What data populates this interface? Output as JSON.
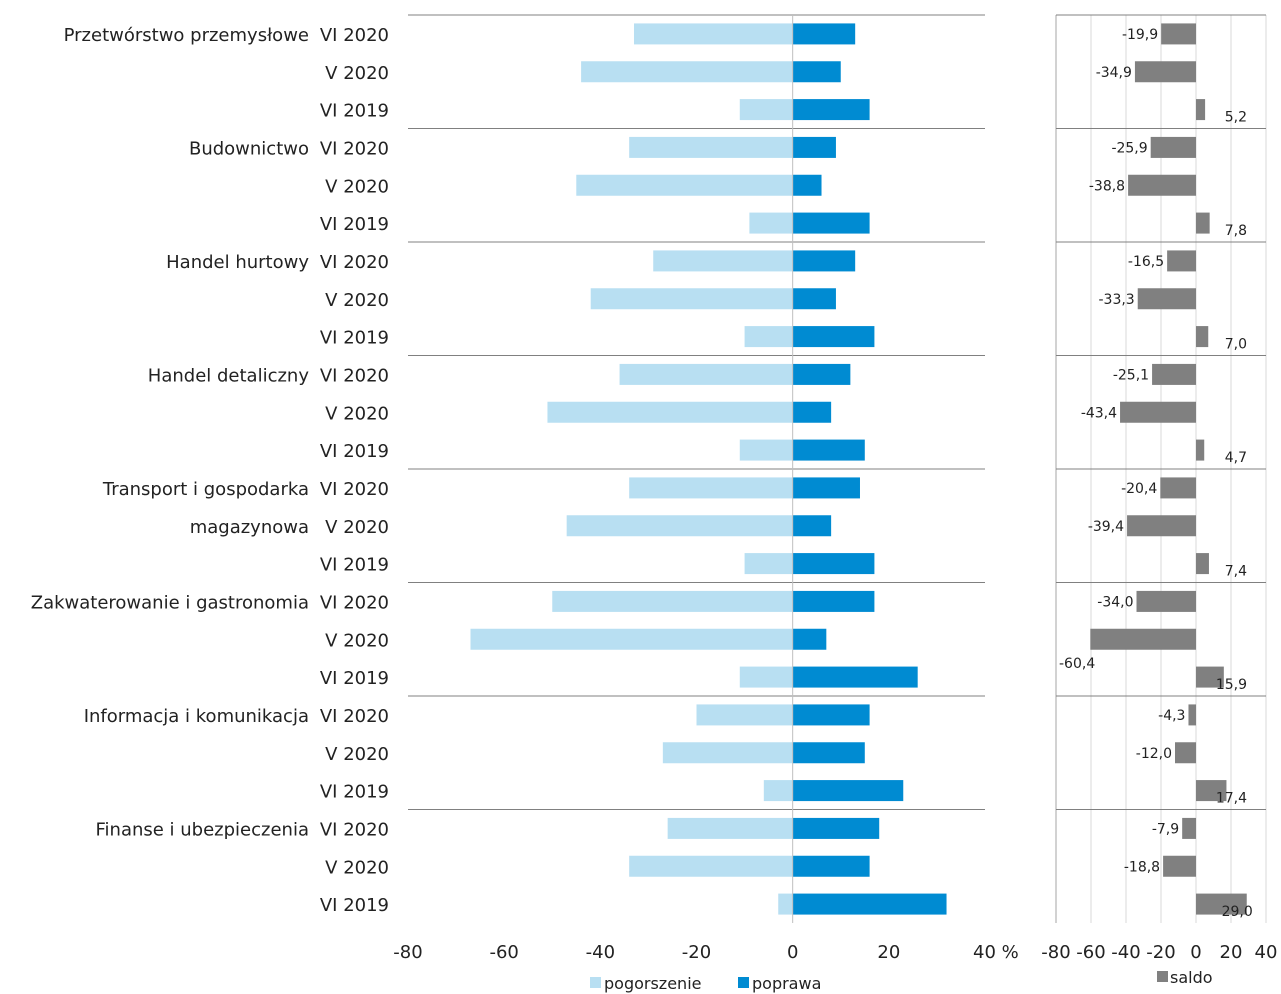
{
  "chart_data": [
    {
      "type": "bar",
      "orientation": "horizontal",
      "stacked": true,
      "groups": [
        "Przetwórstwo przemysłowe",
        "Budownictwo",
        "Handel hurtowy",
        "Handel detaliczny",
        "Transport i gospodarka magazynowa",
        "Zakwaterowanie i gastronomia",
        "Informacja i komunikacja",
        "Finanse i ubezpieczenia"
      ],
      "group_label_lines": [
        [
          "Przetwórstwo przemysłowe"
        ],
        [
          "Budownictwo"
        ],
        [
          "Handel hurtowy"
        ],
        [
          "Handel detaliczny"
        ],
        [
          "Transport i gospodarka",
          "magazynowa"
        ],
        [
          "Zakwaterowanie i gastronomia"
        ],
        [
          "Informacja i komunikacja"
        ],
        [
          "Finanse i ubezpieczenia"
        ]
      ],
      "periods": [
        "VI 2020",
        "V 2020",
        "VI 2019"
      ],
      "series": [
        {
          "name": "pogorszenie",
          "color": "#b8dff2",
          "values": [
            [
              -33,
              -44,
              -11
            ],
            [
              -34,
              -45,
              -9
            ],
            [
              -29,
              -42,
              -10
            ],
            [
              -36,
              -51,
              -11
            ],
            [
              -34,
              -47,
              -10
            ],
            [
              -50,
              -67,
              -11
            ],
            [
              -20,
              -27,
              -6
            ],
            [
              -26,
              -34,
              -3
            ]
          ]
        },
        {
          "name": "poprawa",
          "color": "#008bd2",
          "values": [
            [
              13,
              10,
              16
            ],
            [
              9,
              6,
              16
            ],
            [
              13,
              9,
              17
            ],
            [
              12,
              8,
              15
            ],
            [
              14,
              8,
              17
            ],
            [
              17,
              7,
              26
            ],
            [
              16,
              15,
              23
            ],
            [
              18,
              16,
              32
            ]
          ]
        }
      ],
      "xlim": [
        -80,
        40
      ],
      "xticks": [
        "-80",
        "-60",
        "-40",
        "-20",
        "0",
        "20",
        "40 %"
      ],
      "legend_position": "bottom",
      "grid": false
    },
    {
      "type": "bar",
      "orientation": "horizontal",
      "series": [
        {
          "name": "saldo",
          "color": "#808080",
          "values": [
            [
              -19.9,
              -34.9,
              5.2
            ],
            [
              -25.9,
              -38.8,
              7.8
            ],
            [
              -16.5,
              -33.3,
              7.0
            ],
            [
              -25.1,
              -43.4,
              4.7
            ],
            [
              -20.4,
              -39.4,
              7.4
            ],
            [
              -34.0,
              -60.4,
              15.9
            ],
            [
              -4.3,
              -12.0,
              17.4
            ],
            [
              -7.9,
              -18.8,
              29.0
            ]
          ],
          "labels": [
            [
              "-19,9",
              "-34,9",
              "5,2"
            ],
            [
              "-25,9",
              "-38,8",
              "7,8"
            ],
            [
              "-16,5",
              "-33,3",
              "7,0"
            ],
            [
              "-25,1",
              "-43,4",
              "4,7"
            ],
            [
              "-20,4",
              "-39,4",
              "7,4"
            ],
            [
              "-34,0",
              "-60,4",
              "15,9"
            ],
            [
              "-4,3",
              "-12,0",
              "17,4"
            ],
            [
              "-7,9",
              "-18,8",
              "29,0"
            ]
          ]
        }
      ],
      "xlim": [
        -80,
        40
      ],
      "xticks": [
        "-80",
        "-60",
        "-40",
        "-20",
        "0",
        "20",
        "40"
      ],
      "grid": true,
      "legend_position": "bottom"
    }
  ]
}
